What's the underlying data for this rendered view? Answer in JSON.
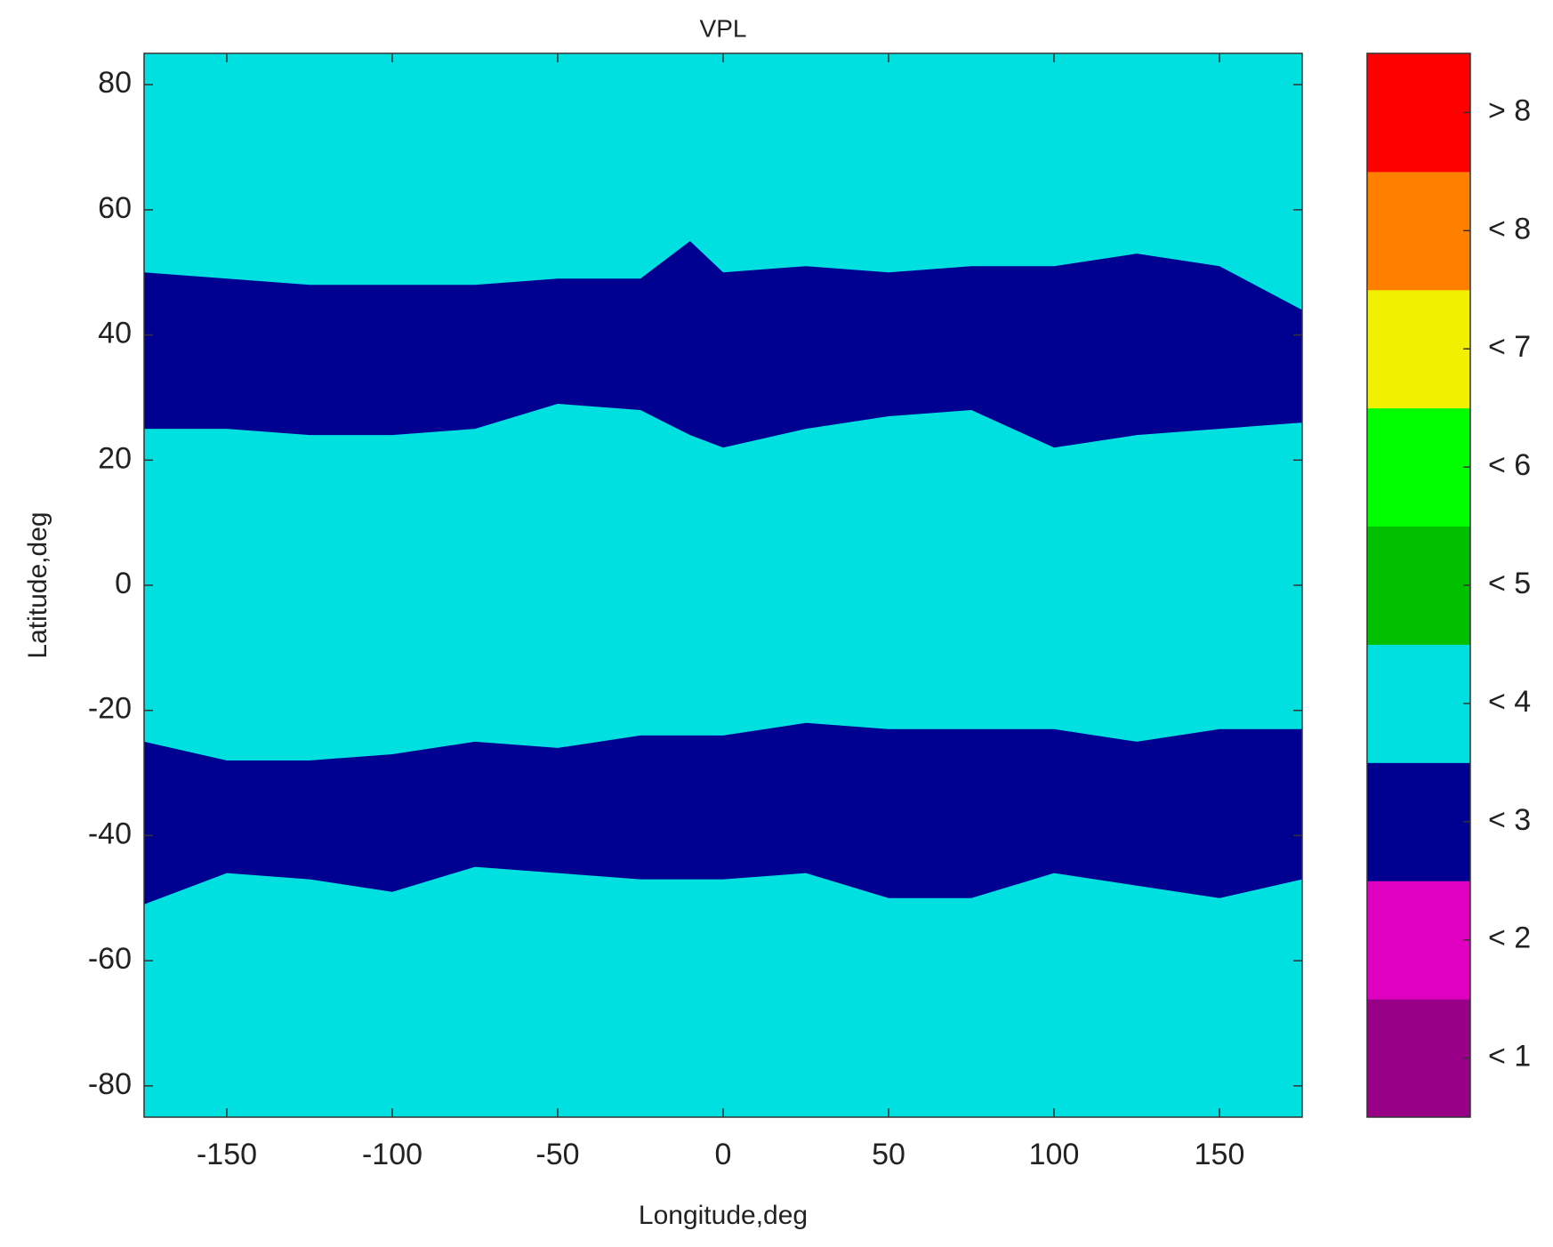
{
  "chart_data": {
    "type": "map",
    "title": "VPL",
    "x_label": "Longitude,deg",
    "y_label": "Latitude,deg",
    "xlim": [
      -175,
      175
    ],
    "ylim": [
      -85,
      85
    ],
    "xticks": [
      -150,
      -100,
      -50,
      0,
      50,
      100,
      150
    ],
    "yticks": [
      80,
      60,
      40,
      20,
      0,
      -20,
      -40,
      -60,
      -80
    ],
    "levels": [
      {
        "label": "< 1",
        "color": "#990088"
      },
      {
        "label": "< 2",
        "color": "#e000c0"
      },
      {
        "label": "< 3",
        "color": "#000090"
      },
      {
        "label": "< 4",
        "color": "#00e0e0"
      },
      {
        "label": "< 5",
        "color": "#00c000"
      },
      {
        "label": "< 6",
        "color": "#00ff00"
      },
      {
        "label": "< 7",
        "color": "#f0f000"
      },
      {
        "label": "< 8",
        "color": "#ff8000"
      },
      {
        "label": "> 8",
        "color": "#ff0000"
      }
    ],
    "background_level": 3,
    "regions": [
      {
        "level": 2,
        "lon": [
          -175,
          -150,
          -125,
          -100,
          -75,
          -50,
          -25,
          -10,
          0,
          25,
          50,
          75,
          100,
          125,
          150,
          175
        ],
        "north": [
          50,
          49,
          48,
          48,
          48,
          49,
          49,
          55,
          50,
          51,
          50,
          51,
          51,
          53,
          51,
          44
        ],
        "south": [
          25,
          25,
          24,
          24,
          25,
          29,
          28,
          24,
          22,
          25,
          27,
          28,
          22,
          24,
          25,
          26
        ]
      },
      {
        "level": 2,
        "lon": [
          -175,
          -150,
          -125,
          -100,
          -75,
          -50,
          -25,
          0,
          25,
          50,
          75,
          100,
          125,
          150,
          175
        ],
        "north": [
          -25,
          -28,
          -28,
          -27,
          -25,
          -26,
          -24,
          -24,
          -22,
          -23,
          -23,
          -23,
          -25,
          -23,
          -23
        ],
        "south": [
          -51,
          -46,
          -47,
          -49,
          -45,
          -46,
          -47,
          -47,
          -46,
          -50,
          -50,
          -46,
          -48,
          -50,
          -47
        ]
      }
    ]
  }
}
